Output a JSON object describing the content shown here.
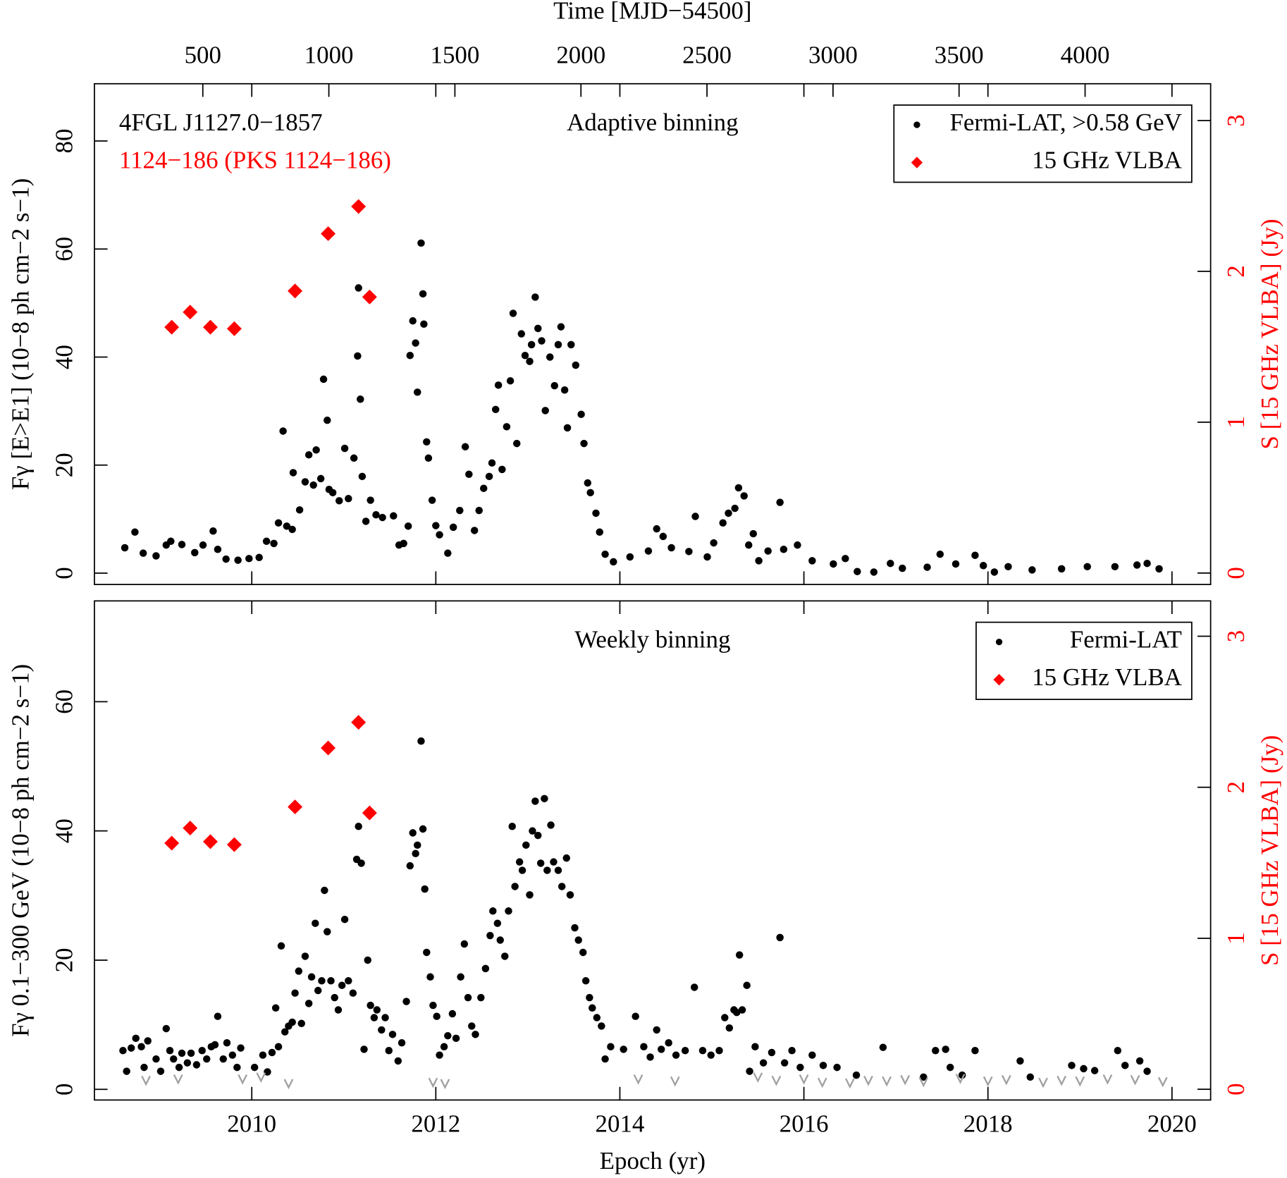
{
  "chart_data": [
    {
      "type": "scatter",
      "title": "Adaptive binning",
      "annotations": [
        {
          "text": "4FGL J1127.0−1857",
          "color": "#000000"
        },
        {
          "text": "1124−186 (PKS 1124−186)",
          "color": "#ff0000"
        }
      ],
      "ylabel": "Fγ [E>E1] (10−8 ph cm−2 s−1)",
      "y2label": "S [15 GHz VLBA] (Jy)",
      "x2label": "Time [MJD−54500]",
      "xlim": [
        2008.29,
        2020.42
      ],
      "x2lim": [
        70,
        4498
      ],
      "x2ticks": [
        500,
        1000,
        1500,
        2000,
        2500,
        3000,
        3500,
        4000
      ],
      "ylim": [
        -2.1,
        90.6
      ],
      "yticks": [
        0,
        20,
        40,
        60,
        80
      ],
      "y2lim": [
        -0.076,
        3.244
      ],
      "y2ticks": [
        0,
        1,
        2,
        3
      ],
      "grid": false,
      "legend": "upper right",
      "series": [
        {
          "name": "Fermi-LAT, >0.58 GeV",
          "color": "#000000",
          "marker": "circle",
          "x": [
            2008.62,
            2008.73,
            2008.82,
            2008.96,
            2009.07,
            2009.12,
            2009.24,
            2009.38,
            2009.47,
            2009.58,
            2009.63,
            2009.72,
            2009.85,
            2009.97,
            2010.08,
            2010.16,
            2010.24,
            2010.29,
            2010.34,
            2010.38,
            2010.44,
            2010.45,
            2010.52,
            2010.58,
            2010.62,
            2010.67,
            2010.7,
            2010.75,
            2010.78,
            2010.82,
            2010.84,
            2010.88,
            2010.95,
            2011.01,
            2011.05,
            2011.11,
            2011.15,
            2011.16,
            2011.18,
            2011.2,
            2011.24,
            2011.29,
            2011.35,
            2011.42,
            2011.54,
            2011.6,
            2011.65,
            2011.7,
            2011.72,
            2011.75,
            2011.78,
            2011.8,
            2011.84,
            2011.86,
            2011.87,
            2011.9,
            2011.92,
            2011.96,
            2012.0,
            2012.04,
            2012.13,
            2012.19,
            2012.26,
            2012.32,
            2012.36,
            2012.42,
            2012.47,
            2012.52,
            2012.58,
            2012.61,
            2012.65,
            2012.68,
            2012.72,
            2012.77,
            2012.81,
            2012.84,
            2012.88,
            2012.93,
            2012.97,
            2013.02,
            2013.04,
            2013.08,
            2013.11,
            2013.15,
            2013.19,
            2013.24,
            2013.29,
            2013.33,
            2013.36,
            2013.4,
            2013.43,
            2013.47,
            2013.52,
            2013.58,
            2013.61,
            2013.65,
            2013.68,
            2013.74,
            2013.78,
            2013.84,
            2013.93,
            2014.11,
            2014.31,
            2014.4,
            2014.47,
            2014.56,
            2014.75,
            2014.82,
            2014.95,
            2015.02,
            2015.12,
            2015.18,
            2015.25,
            2015.29,
            2015.35,
            2015.4,
            2015.45,
            2015.51,
            2015.61,
            2015.74,
            2015.78,
            2015.93,
            2016.09,
            2016.32,
            2016.45,
            2016.58,
            2016.76,
            2016.94,
            2017.07,
            2017.34,
            2017.48,
            2017.65,
            2017.86,
            2017.95,
            2018.07,
            2018.22,
            2018.48,
            2018.8,
            2019.08,
            2019.38,
            2019.62,
            2019.73,
            2019.86
          ],
          "values": [
            4.7,
            7.6,
            3.7,
            3.2,
            5.2,
            5.9,
            5.3,
            3.8,
            5.2,
            7.8,
            4.4,
            2.6,
            2.4,
            2.7,
            2.9,
            5.9,
            5.5,
            9.3,
            26.3,
            8.7,
            8.1,
            18.6,
            11.7,
            16.9,
            21.9,
            16.3,
            22.8,
            17.5,
            35.9,
            28.3,
            15.5,
            14.9,
            13.4,
            23.1,
            13.8,
            21.3,
            40.2,
            52.8,
            32.2,
            17.9,
            9.6,
            13.5,
            10.8,
            10.3,
            10.6,
            5.2,
            5.5,
            8.7,
            40.3,
            46.7,
            42.6,
            33.5,
            61.1,
            51.7,
            46.1,
            24.3,
            21.3,
            13.5,
            8.8,
            7.1,
            3.7,
            8.5,
            11.6,
            23.4,
            18.3,
            7.9,
            11.6,
            15.7,
            17.9,
            20.4,
            30.3,
            34.8,
            19.2,
            27.1,
            35.6,
            48.1,
            24.0,
            44.3,
            40.3,
            39.2,
            42.3,
            51.1,
            45.3,
            43.0,
            30.1,
            40.0,
            34.7,
            42.3,
            45.6,
            33.9,
            26.9,
            42.3,
            38.5,
            29.4,
            24.0,
            16.7,
            14.9,
            11.1,
            7.6,
            3.5,
            2.1,
            3.0,
            4.1,
            8.2,
            6.8,
            4.7,
            4.0,
            10.5,
            3.0,
            5.6,
            9.3,
            11.1,
            12.0,
            15.8,
            14.3,
            5.2,
            7.3,
            2.3,
            4.1,
            13.1,
            4.4,
            5.2,
            2.3,
            1.7,
            2.7,
            0.3,
            0.2,
            1.8,
            0.9,
            1.1,
            3.5,
            1.7,
            3.3,
            1.4,
            0.2,
            1.2,
            0.6,
            0.8,
            1.2,
            1.2,
            1.5,
            1.8,
            0.8
          ]
        },
        {
          "name": "15 GHz VLBA",
          "color": "#ff0000",
          "marker": "diamond",
          "axis": "y2",
          "x": [
            2009.13,
            2009.33,
            2009.55,
            2009.81,
            2010.47,
            2010.83,
            2011.16,
            2011.28
          ],
          "values": [
            1.63,
            1.73,
            1.63,
            1.62,
            1.87,
            2.25,
            2.43,
            1.83
          ]
        }
      ]
    },
    {
      "type": "scatter",
      "title": "Weekly binning",
      "ylabel": "Fγ 0.1−300 GeV (10−8 ph cm−2 s−1)",
      "y2label": "S [15 GHz VLBA] (Jy)",
      "xlabel": "Epoch (yr)",
      "xlim": [
        2008.29,
        2020.42
      ],
      "xticks": [
        2010,
        2012,
        2014,
        2016,
        2018,
        2020
      ],
      "ylim": [
        -1.65,
        75.6
      ],
      "yticks": [
        0,
        20,
        40,
        60
      ],
      "y2lim": [
        -0.071,
        3.234
      ],
      "y2ticks": [
        0,
        1,
        2,
        3
      ],
      "grid": false,
      "legend": "upper right",
      "series": [
        {
          "name": "Fermi-LAT",
          "color": "#000000",
          "marker": "circle",
          "x": [
            2008.6,
            2008.64,
            2008.69,
            2008.74,
            2008.8,
            2008.83,
            2008.87,
            2008.96,
            2009.01,
            2009.07,
            2009.11,
            2009.15,
            2009.21,
            2009.24,
            2009.3,
            2009.34,
            2009.4,
            2009.46,
            2009.51,
            2009.56,
            2009.6,
            2009.63,
            2009.69,
            2009.73,
            2009.79,
            2009.84,
            2009.88,
            2010.03,
            2010.12,
            2010.17,
            2010.22,
            2010.26,
            2010.29,
            2010.32,
            2010.36,
            2010.4,
            2010.44,
            2010.47,
            2010.51,
            2010.54,
            2010.58,
            2010.62,
            2010.65,
            2010.69,
            2010.72,
            2010.76,
            2010.79,
            2010.82,
            2010.86,
            2010.9,
            2010.94,
            2010.98,
            2011.01,
            2011.05,
            2011.1,
            2011.14,
            2011.16,
            2011.19,
            2011.22,
            2011.26,
            2011.29,
            2011.33,
            2011.36,
            2011.41,
            2011.45,
            2011.49,
            2011.53,
            2011.59,
            2011.63,
            2011.68,
            2011.72,
            2011.75,
            2011.78,
            2011.8,
            2011.84,
            2011.86,
            2011.88,
            2011.9,
            2011.94,
            2011.97,
            2012.01,
            2012.04,
            2012.09,
            2012.13,
            2012.18,
            2012.22,
            2012.27,
            2012.31,
            2012.35,
            2012.39,
            2012.43,
            2012.49,
            2012.54,
            2012.59,
            2012.62,
            2012.67,
            2012.7,
            2012.75,
            2012.79,
            2012.83,
            2012.86,
            2012.91,
            2012.94,
            2012.98,
            2013.02,
            2013.05,
            2013.08,
            2013.11,
            2013.14,
            2013.18,
            2013.21,
            2013.25,
            2013.28,
            2013.33,
            2013.37,
            2013.42,
            2013.46,
            2013.51,
            2013.55,
            2013.6,
            2013.63,
            2013.67,
            2013.7,
            2013.75,
            2013.8,
            2013.84,
            2013.9,
            2014.04,
            2014.17,
            2014.26,
            2014.33,
            2014.4,
            2014.45,
            2014.53,
            2014.61,
            2014.71,
            2014.81,
            2014.9,
            2014.99,
            2015.08,
            2015.14,
            2015.19,
            2015.24,
            2015.27,
            2015.3,
            2015.33,
            2015.38,
            2015.41,
            2015.47,
            2015.56,
            2015.65,
            2015.74,
            2015.79,
            2015.87,
            2015.96,
            2016.09,
            2016.21,
            2016.36,
            2016.57,
            2016.86,
            2017.3,
            2017.43,
            2017.54,
            2017.59,
            2017.72,
            2017.86,
            2018.35,
            2018.46,
            2018.91,
            2019.04,
            2019.16,
            2019.41,
            2019.49,
            2019.65,
            2019.73
          ],
          "values": [
            6.0,
            2.8,
            6.4,
            7.9,
            6.6,
            3.4,
            7.5,
            4.7,
            2.8,
            9.4,
            6.0,
            4.7,
            3.4,
            5.6,
            4.1,
            5.6,
            3.8,
            6.0,
            4.7,
            6.6,
            6.9,
            11.3,
            4.7,
            7.2,
            5.3,
            3.4,
            6.4,
            3.4,
            5.3,
            2.7,
            5.7,
            12.6,
            6.6,
            22.2,
            8.9,
            9.8,
            10.4,
            14.9,
            18.3,
            10.2,
            20.6,
            13.3,
            17.4,
            25.7,
            15.3,
            16.8,
            30.8,
            24.4,
            16.8,
            14.2,
            12.3,
            16.1,
            26.3,
            16.8,
            14.9,
            35.6,
            40.7,
            35.0,
            6.2,
            20.0,
            13.0,
            11.1,
            12.3,
            9.2,
            11.1,
            6.0,
            8.5,
            4.4,
            7.2,
            13.6,
            34.6,
            39.7,
            36.5,
            37.8,
            53.9,
            40.3,
            31.0,
            21.2,
            17.4,
            13.0,
            11.3,
            5.3,
            6.6,
            8.3,
            11.7,
            7.9,
            17.4,
            22.5,
            14.2,
            9.8,
            8.5,
            14.2,
            18.7,
            23.8,
            27.6,
            25.7,
            23.1,
            20.6,
            27.6,
            40.7,
            31.4,
            35.2,
            33.9,
            37.8,
            30.1,
            40.0,
            44.6,
            39.3,
            35.0,
            45.0,
            33.9,
            40.9,
            35.2,
            33.9,
            31.4,
            35.8,
            30.1,
            25.0,
            23.1,
            21.2,
            16.8,
            14.2,
            12.6,
            11.1,
            9.8,
            4.7,
            6.6,
            6.2,
            11.3,
            6.6,
            5.0,
            9.2,
            6.2,
            7.2,
            5.3,
            6.0,
            15.8,
            6.0,
            5.3,
            6.0,
            11.1,
            9.5,
            12.3,
            11.9,
            20.8,
            12.3,
            16.1,
            2.8,
            6.6,
            4.1,
            5.7,
            23.5,
            4.1,
            6.0,
            3.4,
            5.3,
            3.7,
            3.4,
            2.2,
            6.5,
            1.9,
            6.0,
            6.2,
            3.4,
            2.2,
            6.0,
            4.4,
            1.9,
            3.7,
            3.2,
            2.9,
            6.0,
            3.7,
            4.4,
            2.8
          ]
        },
        {
          "name": "15 GHz VLBA",
          "color": "#ff0000",
          "marker": "diamond",
          "axis": "y2",
          "x": [
            2009.13,
            2009.33,
            2009.55,
            2009.81,
            2010.47,
            2010.83,
            2011.16,
            2011.28
          ],
          "values": [
            1.63,
            1.73,
            1.64,
            1.62,
            1.87,
            2.26,
            2.43,
            1.83
          ]
        }
      ],
      "upper_limits": {
        "color": "#a0a0a0",
        "x": [
          2008.85,
          2009.2,
          2009.9,
          2010.1,
          2010.4,
          2011.97,
          2012.1,
          2014.2,
          2014.6,
          2015.5,
          2015.7,
          2016.0,
          2016.2,
          2016.5,
          2016.7,
          2016.9,
          2017.1,
          2017.3,
          2017.7,
          2018.0,
          2018.2,
          2018.6,
          2018.8,
          2019.0,
          2019.3,
          2019.6,
          2019.9
        ],
        "values": [
          1.3,
          1.5,
          1.5,
          1.8,
          0.8,
          1.0,
          0.8,
          1.5,
          1.2,
          1.8,
          1.3,
          1.5,
          1.0,
          0.9,
          1.3,
          1.2,
          1.4,
          1.1,
          1.6,
          1.2,
          1.4,
          1.0,
          1.3,
          1.2,
          1.5,
          1.4,
          1.1
        ]
      }
    }
  ]
}
